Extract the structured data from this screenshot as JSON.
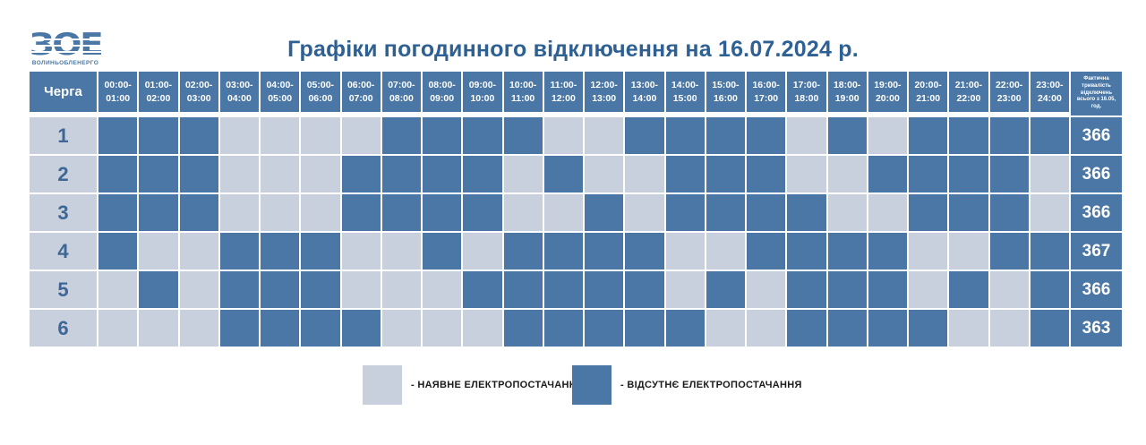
{
  "logo": {
    "abbr": "ЗОЕ",
    "company": "ВОЛИНЬОБЛЕНЕРГО"
  },
  "title": "Графіки погодинного відключення на 16.07.2024 р.",
  "table": {
    "corner_label": "Черга",
    "hour_columns": [
      "00:00-\n01:00",
      "01:00-\n02:00",
      "02:00-\n03:00",
      "03:00-\n04:00",
      "04:00-\n05:00",
      "05:00-\n06:00",
      "06:00-\n07:00",
      "07:00-\n08:00",
      "08:00-\n09:00",
      "09:00-\n10:00",
      "10:00-\n11:00",
      "11:00-\n12:00",
      "12:00-\n13:00",
      "13:00-\n14:00",
      "14:00-\n15:00",
      "15:00-\n16:00",
      "16:00-\n17:00",
      "17:00-\n18:00",
      "18:00-\n19:00",
      "19:00-\n20:00",
      "20:00-\n21:00",
      "21:00-\n22:00",
      "22:00-\n23:00",
      "23:00-\n24:00"
    ],
    "total_header": "Фактична\nтривалість\nвідключень\nвсього з 16.05,\nгод.",
    "rows": [
      {
        "queue": "1",
        "cells": [
          1,
          1,
          1,
          0,
          0,
          0,
          0,
          1,
          1,
          1,
          1,
          0,
          0,
          1,
          1,
          1,
          1,
          0,
          1,
          0,
          1,
          1,
          1,
          1
        ],
        "total": "366"
      },
      {
        "queue": "2",
        "cells": [
          1,
          1,
          1,
          0,
          0,
          0,
          1,
          1,
          1,
          1,
          0,
          1,
          0,
          0,
          1,
          1,
          1,
          0,
          0,
          1,
          1,
          1,
          1,
          0
        ],
        "total": "366"
      },
      {
        "queue": "3",
        "cells": [
          1,
          1,
          1,
          0,
          0,
          0,
          1,
          1,
          1,
          1,
          0,
          0,
          1,
          0,
          1,
          1,
          1,
          1,
          0,
          0,
          1,
          1,
          1,
          0
        ],
        "total": "366"
      },
      {
        "queue": "4",
        "cells": [
          1,
          0,
          0,
          1,
          1,
          1,
          0,
          0,
          1,
          0,
          1,
          1,
          1,
          1,
          0,
          0,
          1,
          1,
          1,
          1,
          0,
          0,
          1,
          1
        ],
        "total": "367"
      },
      {
        "queue": "5",
        "cells": [
          0,
          1,
          0,
          1,
          1,
          1,
          0,
          0,
          0,
          1,
          1,
          1,
          1,
          1,
          0,
          1,
          0,
          1,
          1,
          1,
          0,
          1,
          0,
          1
        ],
        "total": "366"
      },
      {
        "queue": "6",
        "cells": [
          0,
          0,
          0,
          1,
          1,
          1,
          1,
          0,
          0,
          0,
          1,
          1,
          1,
          1,
          1,
          0,
          0,
          1,
          1,
          1,
          1,
          0,
          0,
          1
        ],
        "total": "363"
      }
    ]
  },
  "legend": {
    "present": {
      "label": "- НАЯВНЕ ЕЛЕКТРОПОСТАЧАННЯ"
    },
    "absent": {
      "label": "- ВІДСУТНЄ ЕЛЕКТРОПОСТАЧАННЯ"
    }
  },
  "colors": {
    "outage": "#4a77a5",
    "power": "#c8cfdd",
    "title": "#2e6093"
  }
}
